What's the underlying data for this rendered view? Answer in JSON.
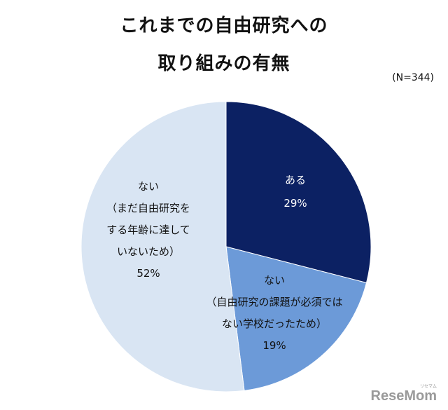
{
  "chart_data": {
    "type": "pie",
    "title": [
      "これまでの自由研究への",
      "取り組みの有無"
    ],
    "note": "(N=344)",
    "slices": [
      {
        "label": [
          "ある"
        ],
        "value": 29,
        "display": "29%",
        "color": "#0c2163",
        "text_color": "#ffffff"
      },
      {
        "label": [
          "ない",
          "（自由研究の課題が必須では",
          "ない学校だったため）"
        ],
        "value": 19,
        "display": "19%",
        "color": "#6c9ad8",
        "text_color": "#111111"
      },
      {
        "label": [
          "ない",
          "（まだ自由研究を",
          "する年齢に達して",
          "いないため）"
        ],
        "value": 52,
        "display": "52%",
        "color": "#d9e5f3",
        "text_color": "#111111"
      }
    ],
    "start_angle_deg": 0,
    "direction": "clockwise"
  },
  "watermark": {
    "text": "ReseMom",
    "kana": "リセマム"
  }
}
